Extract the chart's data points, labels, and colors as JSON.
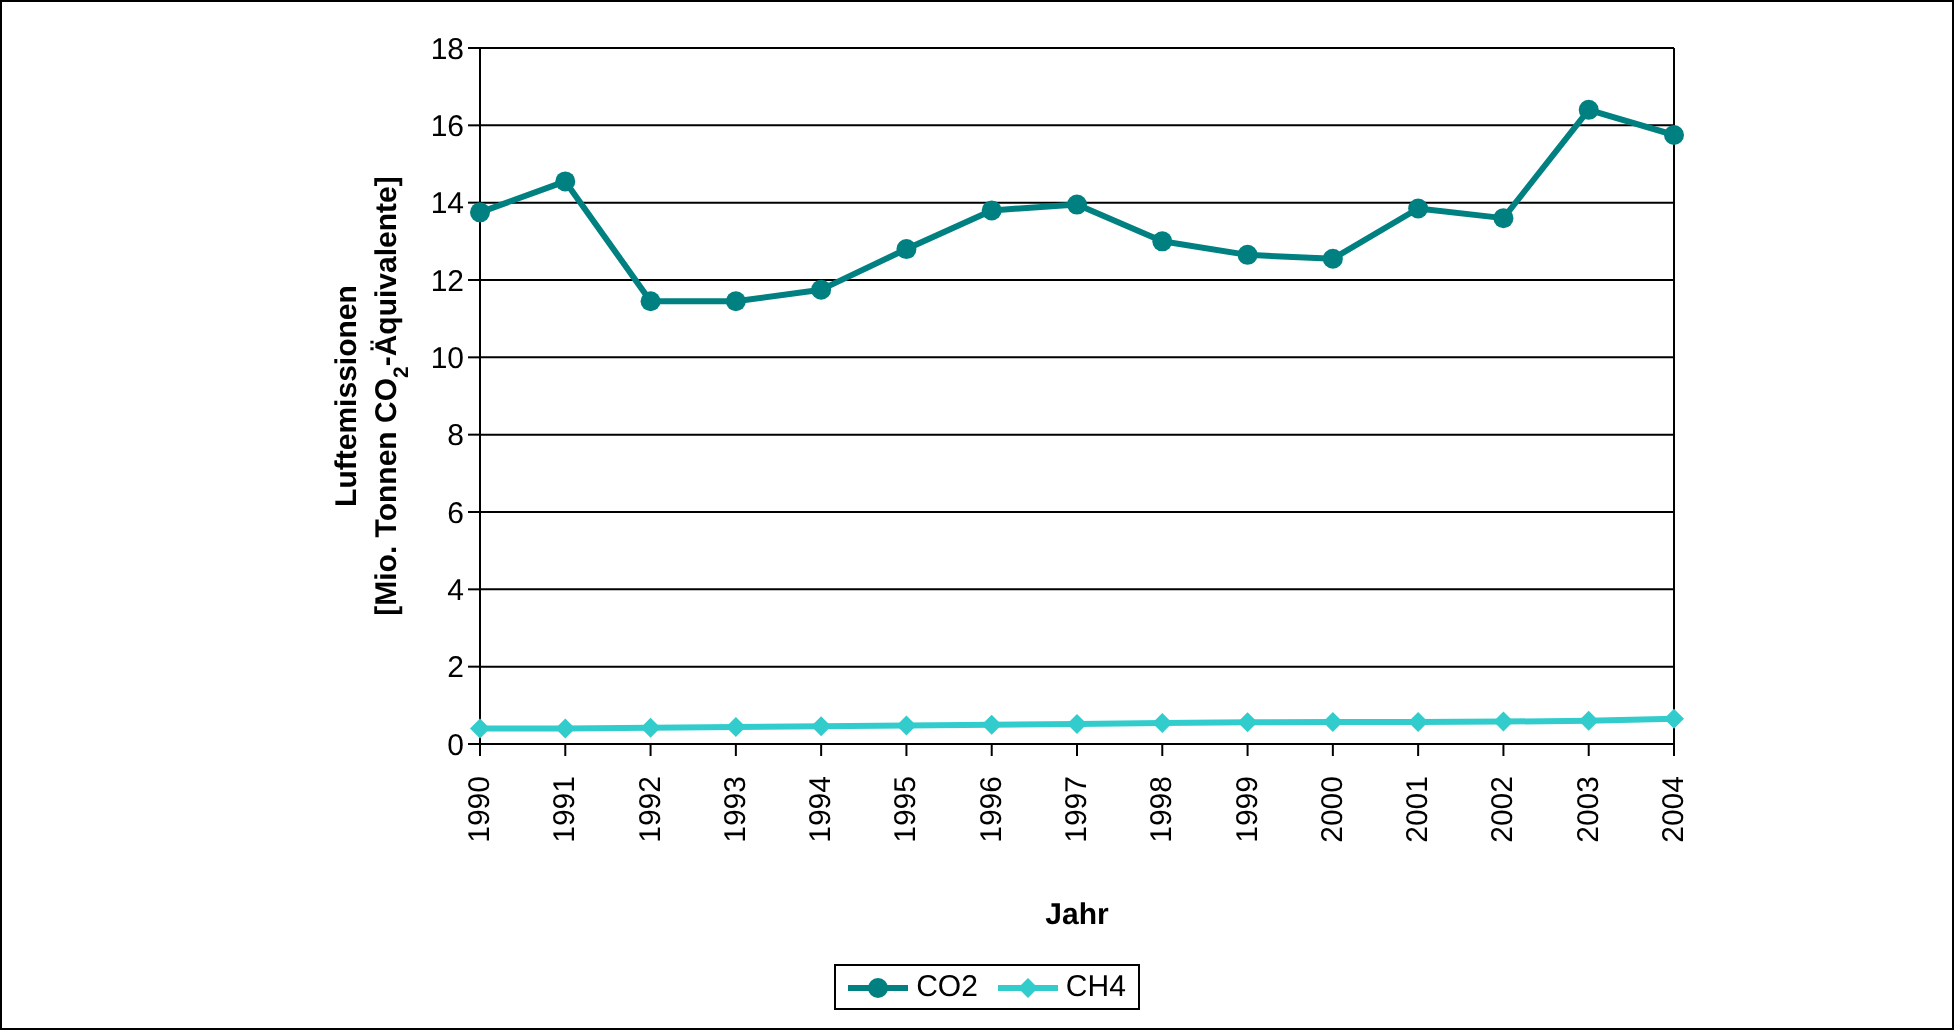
{
  "chart_data": {
    "type": "line",
    "xlabel": "Jahr",
    "ylabel": "Luftemissionen\n[Mio. Tonnen CO$_{2}$-Äquivalente]",
    "categories": [
      "1990",
      "1991",
      "1992",
      "1993",
      "1994",
      "1995",
      "1996",
      "1997",
      "1998",
      "1999",
      "2000",
      "2001",
      "2002",
      "2003",
      "2004"
    ],
    "series": [
      {
        "name": "CO2",
        "color": "#008080",
        "marker": "circle",
        "values": [
          13.75,
          14.55,
          11.45,
          11.45,
          11.75,
          12.8,
          13.8,
          13.95,
          13.0,
          12.65,
          12.55,
          13.85,
          13.6,
          16.4,
          15.75
        ]
      },
      {
        "name": "CH4",
        "color": "#33cccc",
        "marker": "diamond",
        "values": [
          0.4,
          0.4,
          0.42,
          0.44,
          0.46,
          0.48,
          0.5,
          0.52,
          0.54,
          0.56,
          0.57,
          0.57,
          0.58,
          0.6,
          0.65
        ]
      }
    ],
    "ylim": [
      0,
      18
    ],
    "yticks": [
      0,
      2,
      4,
      6,
      8,
      10,
      12,
      14,
      16,
      18
    ],
    "grid": "y",
    "legend": "bottom"
  }
}
